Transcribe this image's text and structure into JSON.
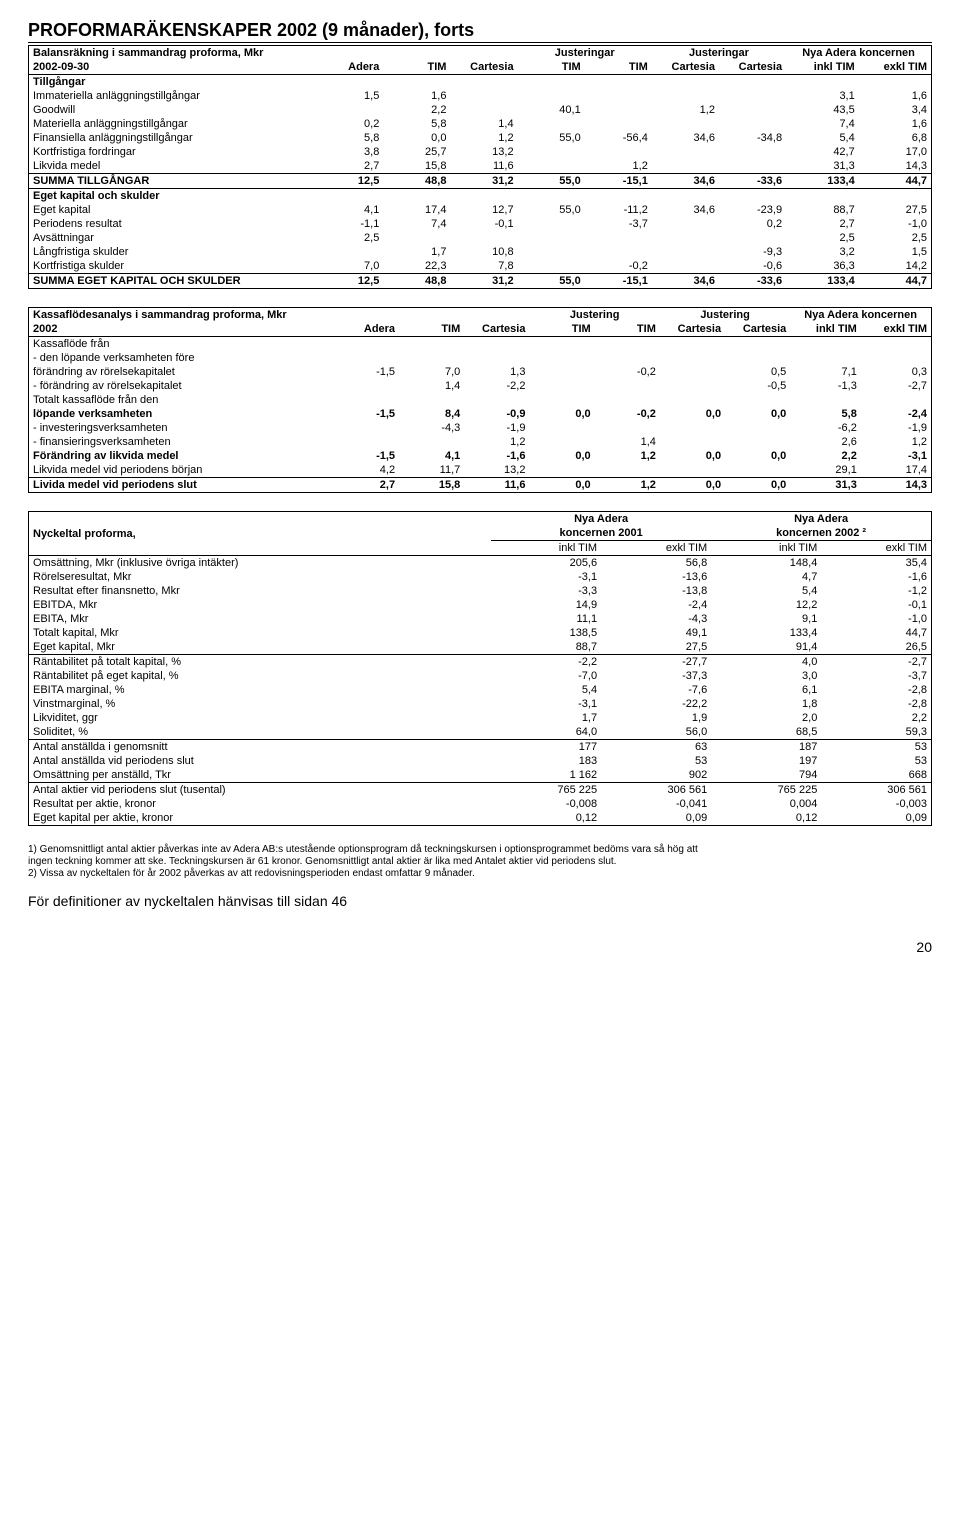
{
  "title": "PROFORMARÄKENSKAPER 2002 (9 månader), forts",
  "table1": {
    "header1": [
      "Balansräkning i sammandrag proforma, Mkr",
      "",
      "",
      "",
      "Justeringar",
      "",
      "Justeringar",
      "",
      "Nya Adera koncernen",
      ""
    ],
    "header2": [
      "2002-09-30",
      "Adera",
      "TIM",
      "Cartesia",
      "TIM",
      "TIM",
      "Cartesia",
      "Cartesia",
      "inkl TIM",
      "exkl TIM"
    ],
    "sections": [
      {
        "label": "Tillgångar",
        "rows": [
          [
            "Immateriella anläggningstillgångar",
            "1,5",
            "1,6",
            "",
            "",
            "",
            "",
            "",
            "3,1",
            "1,6"
          ],
          [
            "Goodwill",
            "",
            "2,2",
            "",
            "40,1",
            "",
            "1,2",
            "",
            "43,5",
            "3,4"
          ],
          [
            "Materiella anläggningstillgångar",
            "0,2",
            "5,8",
            "1,4",
            "",
            "",
            "",
            "",
            "7,4",
            "1,6"
          ],
          [
            "Finansiella anläggningstillgångar",
            "5,8",
            "0,0",
            "1,2",
            "55,0",
            "-56,4",
            "34,6",
            "-34,8",
            "5,4",
            "6,8"
          ],
          [
            "Kortfristiga fordringar",
            "3,8",
            "25,7",
            "13,2",
            "",
            "",
            "",
            "",
            "42,7",
            "17,0"
          ],
          [
            "Likvida medel",
            "2,7",
            "15,8",
            "11,6",
            "",
            "1,2",
            "",
            "",
            "31,3",
            "14,3"
          ]
        ],
        "total": [
          "SUMMA TILLGÅNGAR",
          "12,5",
          "48,8",
          "31,2",
          "55,0",
          "-15,1",
          "34,6",
          "-33,6",
          "133,4",
          "44,7"
        ]
      },
      {
        "label": "Eget kapital och skulder",
        "rows": [
          [
            "Eget kapital",
            "4,1",
            "17,4",
            "12,7",
            "55,0",
            "-11,2",
            "34,6",
            "-23,9",
            "88,7",
            "27,5"
          ],
          [
            "Periodens resultat",
            "-1,1",
            "7,4",
            "-0,1",
            "",
            "-3,7",
            "",
            "0,2",
            "2,7",
            "-1,0"
          ],
          [
            "Avsättningar",
            "2,5",
            "",
            "",
            "",
            "",
            "",
            "",
            "2,5",
            "2,5"
          ],
          [
            "Långfristiga skulder",
            "",
            "1,7",
            "10,8",
            "",
            "",
            "",
            "-9,3",
            "3,2",
            "1,5"
          ],
          [
            "Kortfristiga skulder",
            "7,0",
            "22,3",
            "7,8",
            "",
            "-0,2",
            "",
            "-0,6",
            "36,3",
            "14,2"
          ]
        ],
        "total": [
          "SUMMA EGET KAPITAL OCH SKULDER",
          "12,5",
          "48,8",
          "31,2",
          "55,0",
          "-15,1",
          "34,6",
          "-33,6",
          "133,4",
          "44,7"
        ]
      }
    ]
  },
  "table2": {
    "header1": [
      "Kassaflödesanalys i sammandrag proforma, Mkr",
      "",
      "",
      "",
      "Justering",
      "",
      "Justering",
      "",
      "Nya Adera koncernen",
      ""
    ],
    "header2": [
      "2002",
      "Adera",
      "TIM",
      "Cartesia",
      "TIM",
      "TIM",
      "Cartesia",
      "Cartesia",
      "inkl TIM",
      "exkl TIM"
    ],
    "plain": [
      [
        "Kassaflöde från",
        "",
        "",
        "",
        "",
        "",
        "",
        "",
        "",
        ""
      ],
      [
        "- den löpande verksamheten före",
        "",
        "",
        "",
        "",
        "",
        "",
        "",
        "",
        ""
      ],
      [
        "  förändring av rörelsekapitalet",
        "-1,5",
        "7,0",
        "1,3",
        "",
        "-0,2",
        "",
        "0,5",
        "7,1",
        "0,3"
      ],
      [
        "- förändring av rörelsekapitalet",
        "",
        "1,4",
        "-2,2",
        "",
        "",
        "",
        "-0,5",
        "-1,3",
        "-2,7"
      ],
      [
        "Totalt kassaflöde från den",
        "",
        "",
        "",
        "",
        "",
        "",
        "",
        "",
        ""
      ]
    ],
    "bold": [
      [
        "löpande verksamheten",
        "-1,5",
        "8,4",
        "-0,9",
        "0,0",
        "-0,2",
        "0,0",
        "0,0",
        "5,8",
        "-2,4"
      ]
    ],
    "plain2": [
      [
        "- investeringsverksamheten",
        "",
        "-4,3",
        "-1,9",
        "",
        "",
        "",
        "",
        "-6,2",
        "-1,9"
      ],
      [
        "- finansieringsverksamheten",
        "",
        "",
        "1,2",
        "",
        "1,4",
        "",
        "",
        "2,6",
        "1,2"
      ]
    ],
    "bold2": [
      [
        "Förändring av likvida medel",
        "-1,5",
        "4,1",
        "-1,6",
        "0,0",
        "1,2",
        "0,0",
        "0,0",
        "2,2",
        "-3,1"
      ]
    ],
    "plain3": [
      [
        "Likvida medel vid periodens början",
        "4,2",
        "11,7",
        "13,2",
        "",
        "",
        "",
        "",
        "29,1",
        "17,4"
      ]
    ],
    "total": [
      "Livida medel vid periodens slut",
      "2,7",
      "15,8",
      "11,6",
      "0,0",
      "1,2",
      "0,0",
      "0,0",
      "31,3",
      "14,3"
    ]
  },
  "table3": {
    "header1": [
      "Nyckeltal proforma,",
      "Nya Adera",
      "",
      "Nya Adera",
      ""
    ],
    "header1b": [
      "",
      "koncernen 2001",
      "",
      "koncernen 2002 ²",
      ""
    ],
    "header2": [
      "",
      "inkl TIM",
      "exkl TIM",
      "inkl TIM",
      "exkl TIM"
    ],
    "groups": [
      [
        [
          "Omsättning, Mkr (inklusive övriga intäkter)",
          "205,6",
          "56,8",
          "148,4",
          "35,4"
        ],
        [
          "Rörelseresultat, Mkr",
          "-3,1",
          "-13,6",
          "4,7",
          "-1,6"
        ],
        [
          "Resultat efter finansnetto, Mkr",
          "-3,3",
          "-13,8",
          "5,4",
          "-1,2"
        ],
        [
          "EBITDA, Mkr",
          "14,9",
          "-2,4",
          "12,2",
          "-0,1"
        ],
        [
          "EBITA, Mkr",
          "11,1",
          "-4,3",
          "9,1",
          "-1,0"
        ],
        [
          "Totalt kapital, Mkr",
          "138,5",
          "49,1",
          "133,4",
          "44,7"
        ],
        [
          "Eget kapital, Mkr",
          "88,7",
          "27,5",
          "91,4",
          "26,5"
        ]
      ],
      [
        [
          "Räntabilitet på totalt kapital, %",
          "-2,2",
          "-27,7",
          "4,0",
          "-2,7"
        ],
        [
          "Räntabilitet på eget kapital, %",
          "-7,0",
          "-37,3",
          "3,0",
          "-3,7"
        ],
        [
          "EBITA marginal, %",
          "5,4",
          "-7,6",
          "6,1",
          "-2,8"
        ],
        [
          "Vinstmarginal, %",
          "-3,1",
          "-22,2",
          "1,8",
          "-2,8"
        ],
        [
          "Likviditet, ggr",
          "1,7",
          "1,9",
          "2,0",
          "2,2"
        ],
        [
          "Soliditet, %",
          "64,0",
          "56,0",
          "68,5",
          "59,3"
        ]
      ],
      [
        [
          "Antal anställda i genomsnitt",
          "177",
          "63",
          "187",
          "53"
        ],
        [
          "Antal anställda vid periodens slut",
          "183",
          "53",
          "197",
          "53"
        ],
        [
          "Omsättning per anställd, Tkr",
          "1 162",
          "902",
          "794",
          "668"
        ]
      ],
      [
        [
          "Antal aktier vid periodens slut (tusental)",
          "765 225",
          "306 561",
          "765 225",
          "306 561"
        ],
        [
          "Resultat per aktie, kronor",
          "-0,008",
          "-0,041",
          "0,004",
          "-0,003"
        ],
        [
          "Eget kapital per aktie, kronor",
          "0,12",
          "0,09",
          "0,12",
          "0,09"
        ]
      ]
    ]
  },
  "footnotes": [
    "1) Genomsnittligt antal aktier påverkas inte av Adera AB:s utestående optionsprogram då teckningskursen i optionsprogrammet bedöms vara så hög att",
    "ingen teckning kommer att ske. Teckningskursen är 61 kronor. Genomsnittligt antal aktier är lika med Antalet aktier vid periodens slut.",
    "2) Vissa av nyckeltalen för år 2002 påverkas av att redovisningsperioden endast omfattar 9 månader."
  ],
  "final": "För definitioner av nyckeltalen hänvisas till sidan 46",
  "pagenum": "20"
}
